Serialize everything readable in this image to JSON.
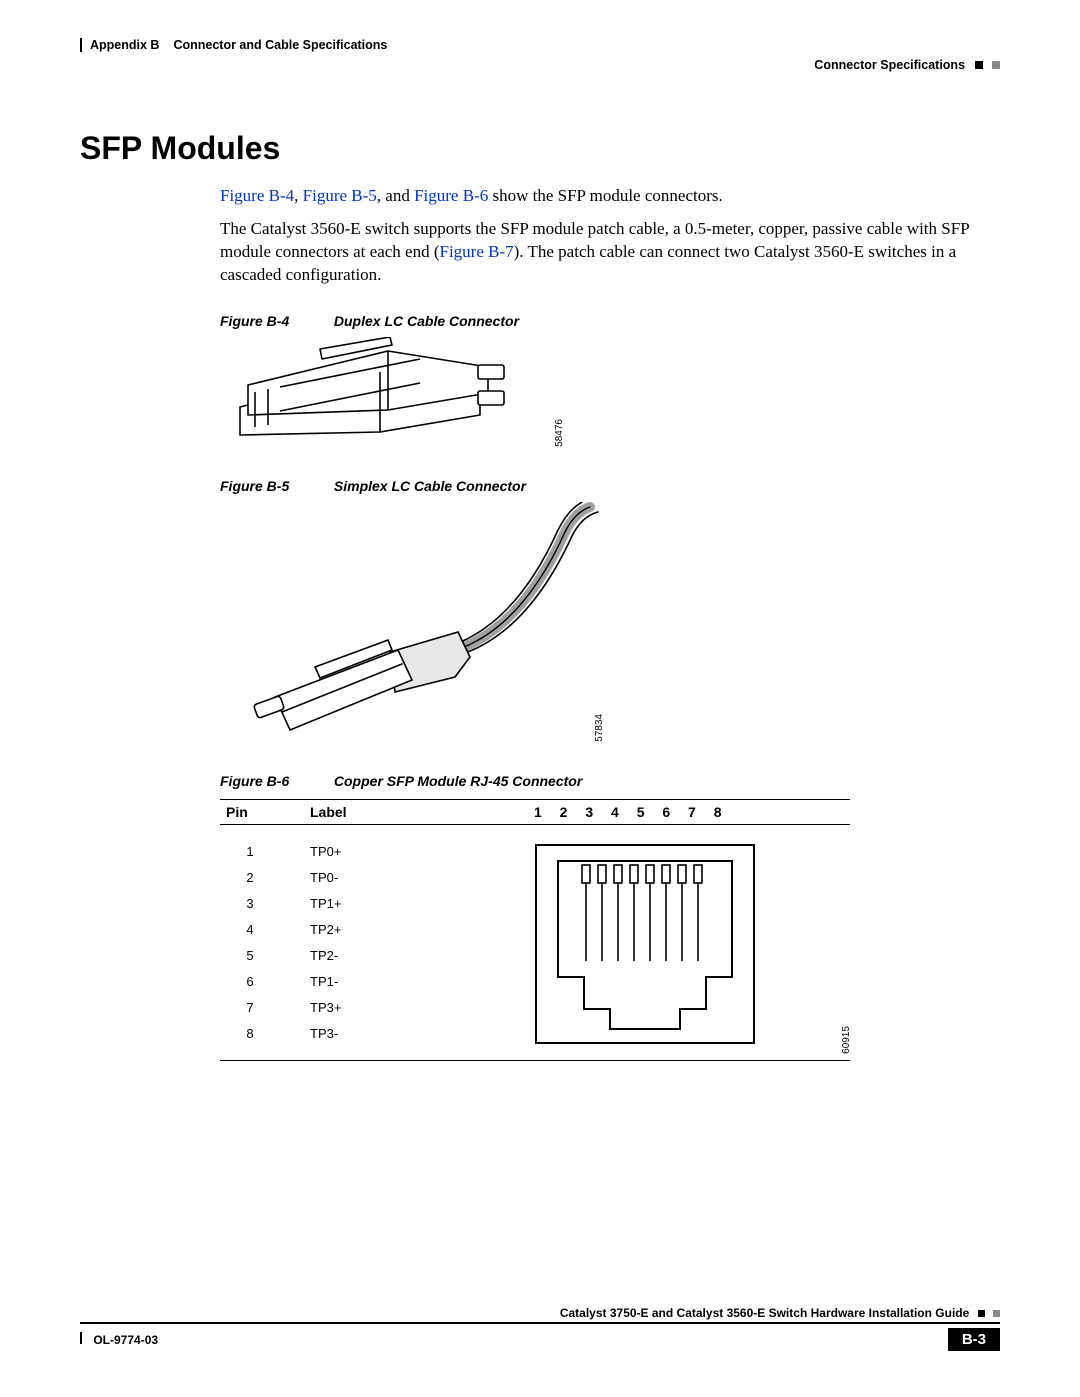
{
  "header": {
    "appendix": "Appendix B",
    "chapter": "Connector and Cable Specifications",
    "section": "Connector Specifications"
  },
  "title": "SFP Modules",
  "para1": {
    "link1": "Figure B-4",
    "sep1": ", ",
    "link2": "Figure B-5",
    "sep2": ", and ",
    "link3": "Figure B-6",
    "rest": " show the SFP module connectors."
  },
  "para2": {
    "t1": "The Catalyst 3560-E switch supports the SFP module patch cable, a 0.5-meter, copper, passive cable with SFP module connectors at each end (",
    "link": "Figure B-7",
    "t2": "). The patch cable can connect two Catalyst 3560-E switches in a cascaded configuration."
  },
  "figures": {
    "b4": {
      "num": "Figure B-4",
      "title": "Duplex LC Cable Connector",
      "id": "58476"
    },
    "b5": {
      "num": "Figure B-5",
      "title": "Simplex LC Cable Connector",
      "id": "57834"
    },
    "b6": {
      "num": "Figure B-6",
      "title": "Copper SFP Module RJ-45 Connector",
      "id": "60915"
    }
  },
  "pinTable": {
    "headers": {
      "pin": "Pin",
      "label": "Label",
      "nums": "1 2 3 4 5 6 7 8"
    },
    "rows": [
      {
        "pin": "1",
        "label": "TP0+"
      },
      {
        "pin": "2",
        "label": "TP0-"
      },
      {
        "pin": "3",
        "label": "TP1+"
      },
      {
        "pin": "4",
        "label": "TP2+"
      },
      {
        "pin": "5",
        "label": "TP2-"
      },
      {
        "pin": "6",
        "label": "TP1-"
      },
      {
        "pin": "7",
        "label": "TP3+"
      },
      {
        "pin": "8",
        "label": "TP3-"
      }
    ]
  },
  "footer": {
    "guide": "Catalyst 3750-E and Catalyst 3560-E Switch Hardware Installation Guide",
    "docid": "OL-9774-03",
    "page": "B-3"
  },
  "colors": {
    "link": "#0033cc",
    "text": "#000000",
    "bg": "#ffffff"
  }
}
